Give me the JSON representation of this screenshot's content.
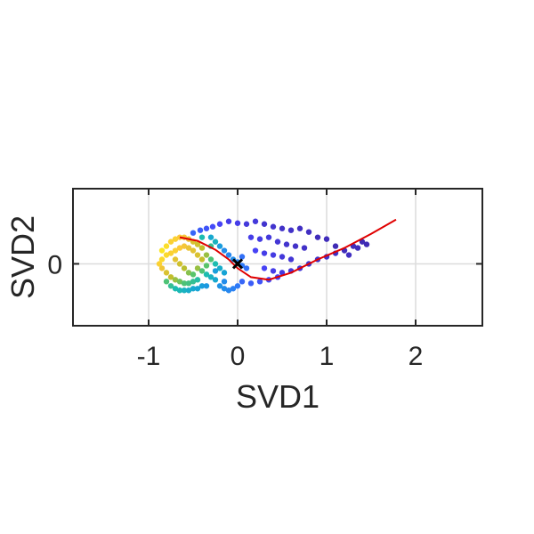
{
  "chart_data": {
    "type": "scatter",
    "title": "",
    "xlabel": "SVD1",
    "ylabel": "SVD2",
    "xlim": [
      -1.85,
      2.75
    ],
    "ylim": [
      -0.7,
      0.85
    ],
    "xticks": [
      -1,
      0,
      1,
      2
    ],
    "xtick_labels": [
      "-1",
      "0",
      "1",
      "2"
    ],
    "yticks": [
      0
    ],
    "ytick_labels": [
      "0"
    ],
    "grid": true,
    "colormap": [
      "#3e26a8",
      "#4743f8",
      "#2c7ef7",
      "#16a3d7",
      "#1cbcb0",
      "#5ac467",
      "#c1be2b",
      "#fcc73b",
      "#f9fb15"
    ],
    "series": [
      {
        "type": "scatter",
        "note_points": "point cloud colored by pseudotime",
        "points": [
          [
            -0.85,
            0.15,
            0.95
          ],
          [
            -0.8,
            0.2,
            0.93
          ],
          [
            -0.75,
            0.25,
            0.9
          ],
          [
            -0.7,
            0.28,
            0.9
          ],
          [
            -0.65,
            0.3,
            0.88
          ],
          [
            -0.6,
            0.3,
            0.86
          ],
          [
            -0.55,
            0.28,
            0.84
          ],
          [
            -0.5,
            0.25,
            0.8
          ],
          [
            -0.45,
            0.22,
            0.78
          ],
          [
            -0.4,
            0.18,
            0.75
          ],
          [
            -0.85,
            0.05,
            0.92
          ],
          [
            -0.8,
            0.1,
            0.92
          ],
          [
            -0.75,
            0.12,
            0.9
          ],
          [
            -0.7,
            0.15,
            0.9
          ],
          [
            -0.65,
            0.18,
            0.88
          ],
          [
            -0.6,
            0.2,
            0.86
          ],
          [
            -0.55,
            0.18,
            0.84
          ],
          [
            -0.5,
            0.15,
            0.82
          ],
          [
            -0.45,
            0.1,
            0.8
          ],
          [
            -0.4,
            0.05,
            0.76
          ],
          [
            -0.88,
            0.0,
            0.9
          ],
          [
            -0.85,
            -0.05,
            0.85
          ],
          [
            -0.8,
            -0.1,
            0.8
          ],
          [
            -0.75,
            -0.15,
            0.75
          ],
          [
            -0.7,
            -0.18,
            0.7
          ],
          [
            -0.65,
            -0.2,
            0.65
          ],
          [
            -0.6,
            -0.22,
            0.6
          ],
          [
            -0.55,
            -0.22,
            0.58
          ],
          [
            -0.5,
            -0.2,
            0.55
          ],
          [
            -0.45,
            -0.18,
            0.52
          ],
          [
            -0.8,
            -0.2,
            0.6
          ],
          [
            -0.75,
            -0.25,
            0.55
          ],
          [
            -0.7,
            -0.28,
            0.5
          ],
          [
            -0.65,
            -0.3,
            0.48
          ],
          [
            -0.6,
            -0.3,
            0.45
          ],
          [
            -0.55,
            -0.3,
            0.42
          ],
          [
            -0.5,
            -0.28,
            0.4
          ],
          [
            -0.45,
            -0.28,
            0.38
          ],
          [
            -0.4,
            -0.25,
            0.36
          ],
          [
            -0.35,
            -0.25,
            0.34
          ],
          [
            -0.7,
            0.05,
            0.82
          ],
          [
            -0.65,
            0.0,
            0.78
          ],
          [
            -0.6,
            -0.05,
            0.74
          ],
          [
            -0.55,
            -0.1,
            0.68
          ],
          [
            -0.5,
            -0.12,
            0.62
          ],
          [
            -0.45,
            -0.05,
            0.7
          ],
          [
            -0.4,
            -0.08,
            0.6
          ],
          [
            -0.35,
            -0.12,
            0.5
          ],
          [
            -0.3,
            -0.15,
            0.45
          ],
          [
            -0.25,
            -0.18,
            0.4
          ],
          [
            -0.35,
            0.1,
            0.7
          ],
          [
            -0.3,
            0.05,
            0.6
          ],
          [
            -0.25,
            0.0,
            0.5
          ],
          [
            -0.2,
            -0.05,
            0.42
          ],
          [
            -0.15,
            -0.1,
            0.38
          ],
          [
            -0.3,
            0.2,
            0.55
          ],
          [
            -0.25,
            0.25,
            0.45
          ],
          [
            -0.2,
            0.2,
            0.35
          ],
          [
            -0.15,
            0.15,
            0.3
          ],
          [
            -0.1,
            0.1,
            0.28
          ],
          [
            -0.2,
            -0.25,
            0.32
          ],
          [
            -0.15,
            -0.28,
            0.3
          ],
          [
            -0.1,
            -0.3,
            0.28
          ],
          [
            -0.05,
            -0.28,
            0.26
          ],
          [
            0.0,
            -0.25,
            0.24
          ],
          [
            -0.05,
            0.05,
            0.3
          ],
          [
            0.0,
            0.02,
            0.26
          ],
          [
            0.05,
            -0.02,
            0.24
          ],
          [
            0.1,
            -0.05,
            0.22
          ],
          [
            0.05,
            0.08,
            0.22
          ],
          [
            -0.5,
            0.35,
            0.2
          ],
          [
            -0.42,
            0.38,
            0.18
          ],
          [
            -0.35,
            0.4,
            0.16
          ],
          [
            -0.28,
            0.42,
            0.14
          ],
          [
            -0.2,
            0.45,
            0.12
          ],
          [
            -0.1,
            0.48,
            0.1
          ],
          [
            0.0,
            0.46,
            0.1
          ],
          [
            0.1,
            0.45,
            0.08
          ],
          [
            0.2,
            0.48,
            0.08
          ],
          [
            0.3,
            0.45,
            0.06
          ],
          [
            0.4,
            0.42,
            0.06
          ],
          [
            0.5,
            0.4,
            0.05
          ],
          [
            0.6,
            0.38,
            0.05
          ],
          [
            0.7,
            0.4,
            0.04
          ],
          [
            0.8,
            0.36,
            0.04
          ],
          [
            0.9,
            0.3,
            0.03
          ],
          [
            1.0,
            0.28,
            0.03
          ],
          [
            1.1,
            0.2,
            0.02
          ],
          [
            0.15,
            0.3,
            0.1
          ],
          [
            0.25,
            0.28,
            0.09
          ],
          [
            0.35,
            0.3,
            0.08
          ],
          [
            0.45,
            0.25,
            0.07
          ],
          [
            0.55,
            0.22,
            0.06
          ],
          [
            0.65,
            0.2,
            0.05
          ],
          [
            0.75,
            0.18,
            0.05
          ],
          [
            0.2,
            0.15,
            0.12
          ],
          [
            0.3,
            0.12,
            0.1
          ],
          [
            0.4,
            0.1,
            0.09
          ],
          [
            0.5,
            0.08,
            0.08
          ],
          [
            0.6,
            0.05,
            0.07
          ],
          [
            0.3,
            -0.05,
            0.12
          ],
          [
            0.4,
            -0.08,
            0.1
          ],
          [
            0.5,
            -0.1,
            0.09
          ],
          [
            0.6,
            -0.08,
            0.08
          ],
          [
            0.7,
            -0.05,
            0.07
          ],
          [
            0.8,
            0.0,
            0.06
          ],
          [
            0.9,
            0.05,
            0.05
          ],
          [
            1.0,
            0.08,
            0.05
          ],
          [
            1.1,
            0.12,
            0.04
          ],
          [
            1.2,
            0.15,
            0.03
          ],
          [
            1.3,
            0.2,
            0.03
          ],
          [
            1.4,
            0.25,
            0.02
          ],
          [
            1.45,
            0.22,
            0.02
          ],
          [
            1.35,
            0.18,
            0.03
          ],
          [
            1.25,
            0.1,
            0.04
          ],
          [
            0.05,
            -0.2,
            0.2
          ],
          [
            0.15,
            -0.22,
            0.18
          ],
          [
            0.25,
            -0.2,
            0.16
          ],
          [
            0.35,
            -0.18,
            0.14
          ],
          [
            0.45,
            -0.15,
            0.12
          ],
          [
            -0.15,
            -0.2,
            0.3
          ],
          [
            -0.25,
            -0.08,
            0.36
          ],
          [
            -0.35,
            -0.02,
            0.62
          ],
          [
            -0.3,
            0.3,
            0.4
          ],
          [
            -0.4,
            0.3,
            0.5
          ]
        ]
      },
      {
        "type": "line",
        "color": "#e00000",
        "points": [
          [
            -0.65,
            0.3
          ],
          [
            -0.45,
            0.26
          ],
          [
            -0.25,
            0.16
          ],
          [
            -0.1,
            0.05
          ],
          [
            0.0,
            -0.05
          ],
          [
            0.15,
            -0.15
          ],
          [
            0.35,
            -0.18
          ],
          [
            0.6,
            -0.1
          ],
          [
            0.9,
            0.05
          ],
          [
            1.2,
            0.18
          ],
          [
            1.5,
            0.34
          ],
          [
            1.78,
            0.5
          ]
        ]
      },
      {
        "type": "marker",
        "marker": "x",
        "color": "#000000",
        "points": [
          [
            0.0,
            0.0
          ]
        ]
      }
    ]
  }
}
